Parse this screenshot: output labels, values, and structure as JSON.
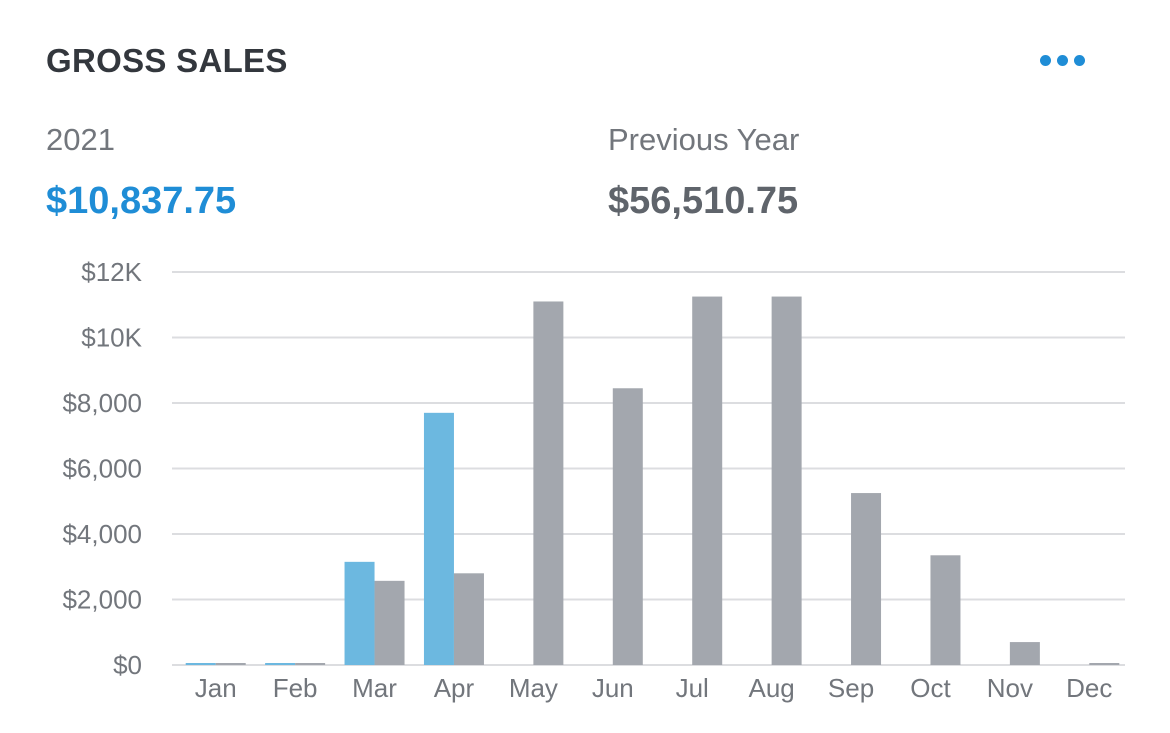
{
  "header": {
    "title": "GROSS SALES",
    "more_icon": "more-horizontal-icon"
  },
  "summary": {
    "current_label": "2021",
    "current_value": "$10,837.75",
    "previous_label": "Previous Year",
    "previous_value": "$56,510.75"
  },
  "colors": {
    "accent": "#1f8dd6",
    "current_bar": "#6cb8e0",
    "previous_bar": "#a3a7ae",
    "grid": "#dcdde0"
  },
  "chart_data": {
    "type": "bar",
    "title": "GROSS SALES",
    "categories": [
      "Jan",
      "Feb",
      "Mar",
      "Apr",
      "May",
      "Jun",
      "Jul",
      "Aug",
      "Sep",
      "Oct",
      "Nov",
      "Dec"
    ],
    "series": [
      {
        "name": "2021",
        "values": [
          40,
          40,
          3150,
          7700,
          0,
          0,
          0,
          0,
          0,
          0,
          0,
          0
        ]
      },
      {
        "name": "Previous Year",
        "values": [
          40,
          40,
          2570,
          2800,
          11100,
          8450,
          11250,
          11250,
          5250,
          3350,
          700,
          50
        ]
      }
    ],
    "ylim": [
      0,
      12000
    ],
    "yticks": [
      0,
      2000,
      4000,
      6000,
      8000,
      10000,
      12000
    ],
    "ytick_labels": [
      "$0",
      "$2,000",
      "$4,000",
      "$6,000",
      "$8,000",
      "$10K",
      "$12K"
    ],
    "grid": true,
    "xlabel": "",
    "ylabel": ""
  }
}
